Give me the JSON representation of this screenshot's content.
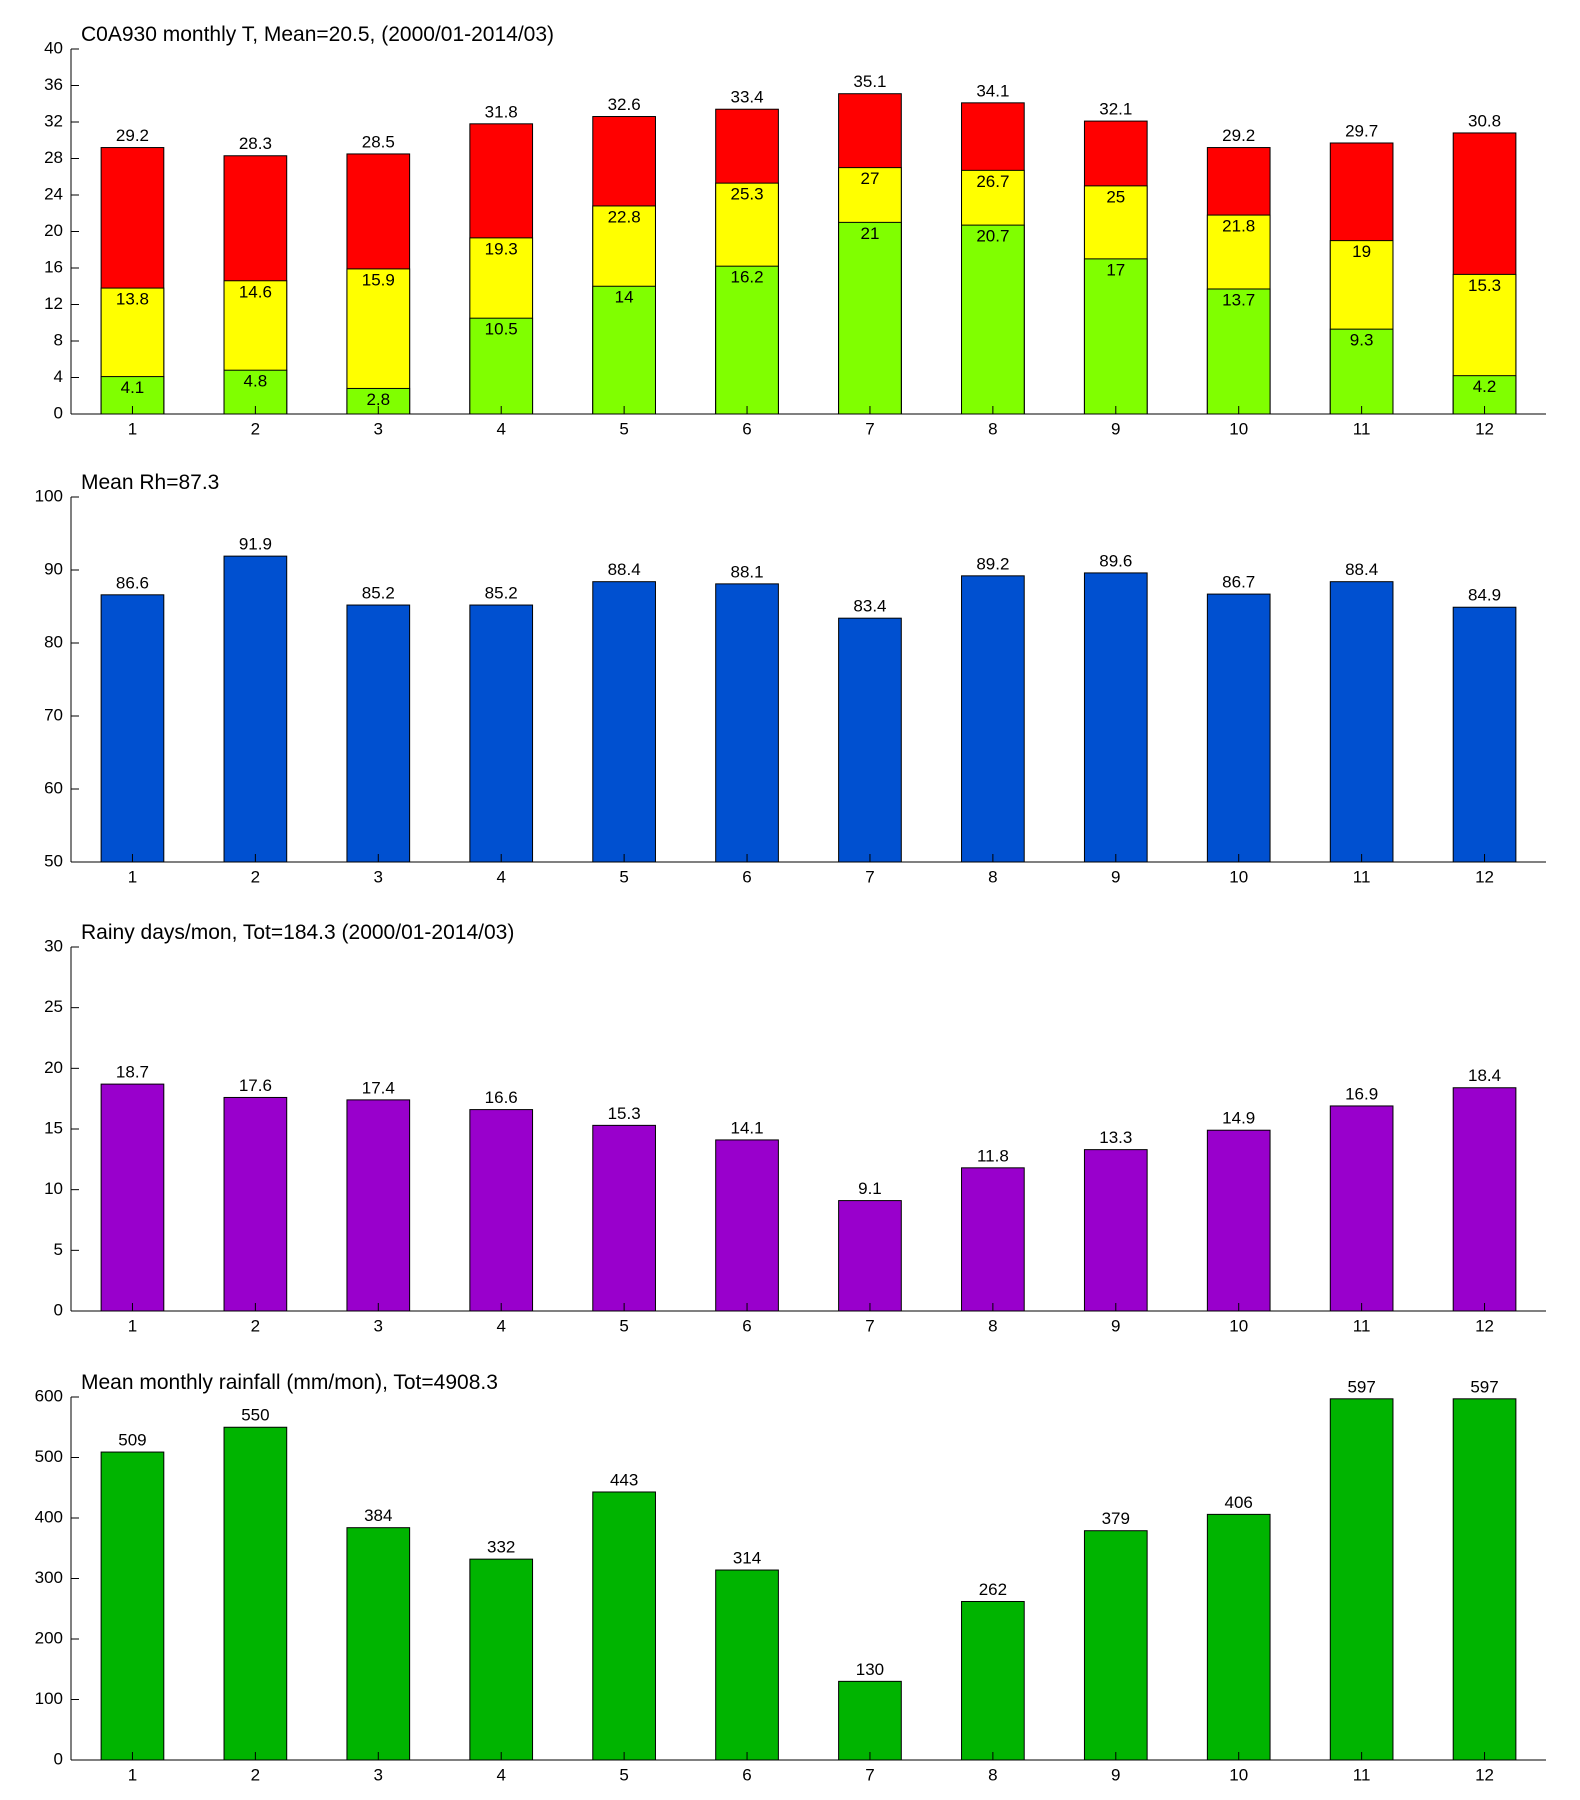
{
  "chart_data": [
    {
      "type": "bar",
      "title": "C0A930 monthly T, Mean=20.5, (2000/01-2014/03)",
      "categories": [
        1,
        2,
        3,
        4,
        5,
        6,
        7,
        8,
        9,
        10,
        11,
        12
      ],
      "series": [
        {
          "color": "#80ff00",
          "values": [
            4.1,
            4.8,
            2.8,
            10.5,
            14,
            16.2,
            21,
            20.7,
            17,
            13.7,
            9.3,
            4.2
          ]
        },
        {
          "color": "#ffff00",
          "values": [
            13.8,
            14.6,
            15.9,
            19.3,
            22.8,
            25.3,
            27,
            26.7,
            25,
            21.8,
            19,
            15.3
          ]
        },
        {
          "color": "#ff0000",
          "values": [
            29.2,
            28.3,
            28.5,
            31.8,
            32.6,
            33.4,
            35.1,
            34.1,
            32.1,
            29.2,
            29.7,
            30.8
          ]
        }
      ],
      "ylim": [
        0,
        40
      ],
      "yticks": [
        0,
        4,
        8,
        12,
        16,
        20,
        24,
        28,
        32,
        36,
        40
      ]
    },
    {
      "type": "bar",
      "title": "Mean Rh=87.3",
      "categories": [
        1,
        2,
        3,
        4,
        5,
        6,
        7,
        8,
        9,
        10,
        11,
        12
      ],
      "series": [
        {
          "color": "#0050d0",
          "values": [
            86.6,
            91.9,
            85.2,
            85.2,
            88.4,
            88.1,
            83.4,
            89.2,
            89.6,
            86.7,
            88.4,
            84.9
          ]
        }
      ],
      "ylim": [
        50,
        100
      ],
      "yticks": [
        50,
        60,
        70,
        80,
        90,
        100
      ]
    },
    {
      "type": "bar",
      "title": "Rainy days/mon, Tot=184.3 (2000/01-2014/03)",
      "categories": [
        1,
        2,
        3,
        4,
        5,
        6,
        7,
        8,
        9,
        10,
        11,
        12
      ],
      "series": [
        {
          "color": "#9900cc",
          "values": [
            18.7,
            17.6,
            17.4,
            16.6,
            15.3,
            14.1,
            9.1,
            11.8,
            13.3,
            14.9,
            16.9,
            18.4
          ]
        }
      ],
      "ylim": [
        0,
        30
      ],
      "yticks": [
        0,
        5,
        10,
        15,
        20,
        25,
        30
      ]
    },
    {
      "type": "bar",
      "title": "Mean monthly rainfall (mm/mon), Tot=4908.3",
      "categories": [
        1,
        2,
        3,
        4,
        5,
        6,
        7,
        8,
        9,
        10,
        11,
        12
      ],
      "series": [
        {
          "color": "#00b400",
          "values": [
            509,
            550,
            384,
            332,
            443,
            314,
            130,
            262,
            379,
            406,
            597,
            597
          ]
        }
      ],
      "ylim": [
        0,
        600
      ],
      "yticks": [
        0,
        100,
        200,
        300,
        400,
        500,
        600
      ]
    }
  ]
}
